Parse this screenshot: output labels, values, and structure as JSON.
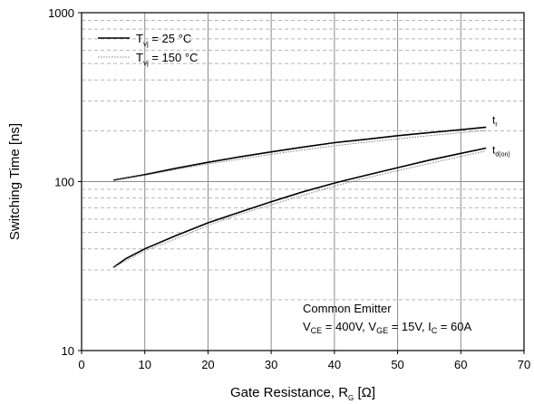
{
  "chart_data": {
    "type": "line",
    "xlabel": "Gate Resistance, R",
    "xlabel_sub": "G",
    "xlabel_unit": " [Ω]",
    "ylabel": "Switching Time [ns]",
    "xlim": [
      0,
      70
    ],
    "ylim": [
      10,
      1000
    ],
    "yscale": "log",
    "x_ticks": [
      0,
      10,
      20,
      30,
      40,
      50,
      60,
      70
    ],
    "y_ticks": [
      10,
      100,
      1000
    ],
    "grid": true,
    "legend_placement": "top-left",
    "legend": [
      {
        "style": "solid",
        "base": "T",
        "sub": "vj",
        "text": " = 25 °C"
      },
      {
        "style": "dotted",
        "base": "T",
        "sub": "vj",
        "text": " = 150 °C"
      }
    ],
    "curve_labels": [
      {
        "base": "t",
        "sub": "r"
      },
      {
        "base": "t",
        "sub": "d(on)"
      }
    ],
    "annotation": {
      "line1": "Common Emitter",
      "line2": [
        {
          "t": "V"
        },
        {
          "t": "CE",
          "sub": true
        },
        {
          "t": " = 400V, V"
        },
        {
          "t": "GE",
          "sub": true
        },
        {
          "t": " = 15V, I"
        },
        {
          "t": "C",
          "sub": true
        },
        {
          "t": " = 60A"
        }
      ]
    },
    "series": [
      {
        "curve": "t_r",
        "condition": "Tvj = 25 °C",
        "style": "solid",
        "x": [
          5,
          10,
          15,
          20,
          25,
          30,
          35,
          40,
          45,
          50,
          55,
          60,
          64
        ],
        "y": [
          102,
          110,
          120,
          130,
          140,
          150,
          160,
          170,
          178,
          187,
          195,
          203,
          210
        ]
      },
      {
        "curve": "t_r",
        "condition": "Tvj = 150 °C",
        "style": "dotted",
        "x": [
          5,
          10,
          15,
          20,
          25,
          30,
          35,
          40,
          45,
          50,
          55,
          60,
          64
        ],
        "y": [
          102,
          109,
          118,
          127,
          136,
          145,
          154,
          163,
          171,
          179,
          187,
          195,
          201
        ]
      },
      {
        "curve": "t_d(on)",
        "condition": "Tvj = 25 °C",
        "style": "solid",
        "x": [
          5,
          7,
          10,
          15,
          20,
          25,
          30,
          35,
          40,
          45,
          50,
          55,
          60,
          64
        ],
        "y": [
          31,
          35,
          40,
          48,
          57,
          66,
          76,
          87,
          98,
          109,
          121,
          134,
          147,
          158
        ]
      },
      {
        "curve": "t_d(on)",
        "condition": "Tvj = 150 °C",
        "style": "dotted",
        "x": [
          5,
          7,
          10,
          15,
          20,
          25,
          30,
          35,
          40,
          45,
          50,
          55,
          60,
          64
        ],
        "y": [
          31,
          34,
          39,
          46,
          55,
          64,
          73,
          83,
          94,
          105,
          116,
          128,
          141,
          152
        ]
      }
    ]
  }
}
